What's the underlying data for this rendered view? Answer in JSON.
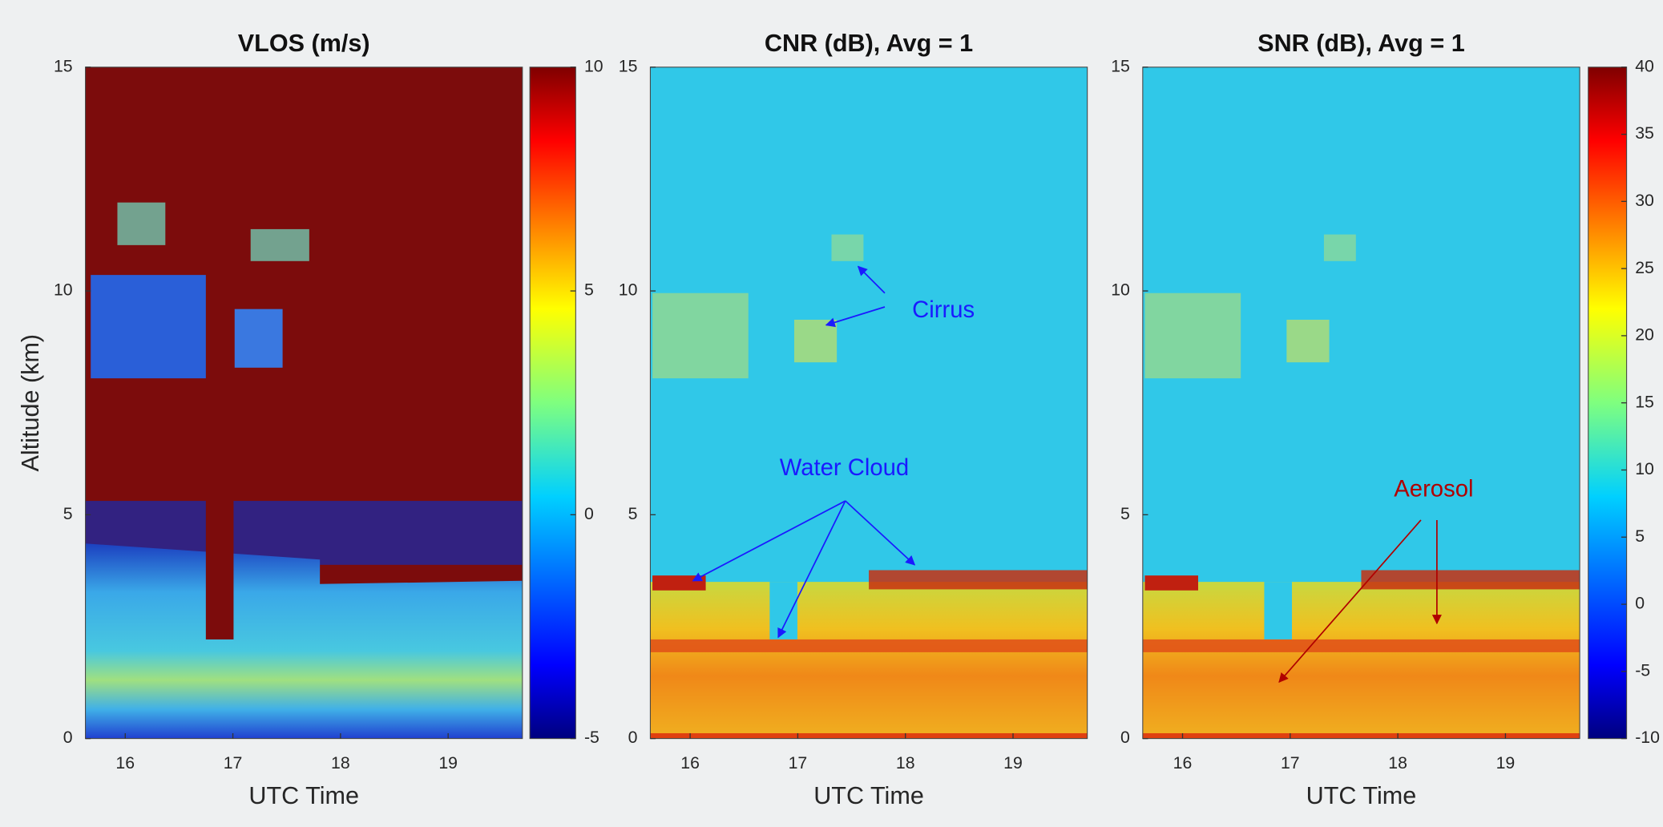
{
  "chart_data": [
    {
      "type": "heatmap",
      "title": "VLOS (m/s)",
      "xlabel": "UTC Time",
      "ylabel": "Altitude (km)",
      "xlim": [
        15.63,
        19.69
      ],
      "xticks": [
        16,
        17,
        18,
        19
      ],
      "ylim": [
        0,
        15
      ],
      "yticks": [
        0,
        5,
        10,
        15
      ],
      "colorbar": {
        "clim": [
          -5,
          10
        ],
        "ticks": [
          -5,
          0,
          5,
          10
        ]
      }
    },
    {
      "type": "heatmap",
      "title": "CNR (dB), Avg = 1",
      "xlabel": "UTC Time",
      "xlim": [
        15.63,
        19.69
      ],
      "xticks": [
        16,
        17,
        18,
        19
      ],
      "ylim": [
        0,
        15
      ],
      "yticks": [
        0,
        5,
        10,
        15
      ],
      "annotations": [
        {
          "text": "Cirrus",
          "color": "#1a1aff"
        },
        {
          "text": "Water Cloud",
          "color": "#1a1aff"
        }
      ]
    },
    {
      "type": "heatmap",
      "title": "SNR (dB), Avg = 1",
      "xlabel": "UTC Time",
      "xlim": [
        15.63,
        19.69
      ],
      "xticks": [
        16,
        17,
        18,
        19
      ],
      "ylim": [
        0,
        15
      ],
      "yticks": [
        0,
        5,
        10,
        15
      ],
      "colorbar": {
        "clim": [
          -10,
          40
        ],
        "ticks": [
          -10,
          -5,
          0,
          5,
          10,
          15,
          20,
          25,
          30,
          35,
          40
        ]
      },
      "annotations": [
        {
          "text": "Aerosol",
          "color": "#b00000"
        }
      ]
    }
  ]
}
